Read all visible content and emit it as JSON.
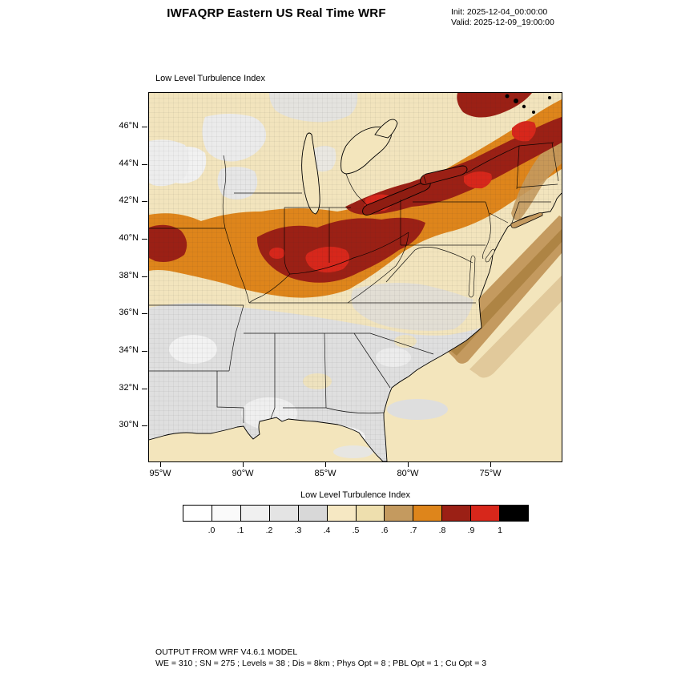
{
  "header": {
    "title": "IWFAQRP Eastern US Real Time WRF",
    "init": "Init: 2025-12-04_00:00:00",
    "valid": "Valid: 2025-12-09_19:00:00"
  },
  "map": {
    "field_title": "Low Level Turbulence Index",
    "lat_ticks": [
      "46°N",
      "44°N",
      "42°N",
      "40°N",
      "38°N",
      "36°N",
      "34°N",
      "32°N",
      "30°N"
    ],
    "lon_ticks": [
      "95°W",
      "90°W",
      "85°W",
      "80°W",
      "75°W"
    ]
  },
  "colorbar": {
    "title": "Low Level Turbulence Index",
    "ticks": [
      ".0",
      ".1",
      ".2",
      ".3",
      ".4",
      ".5",
      ".6",
      ".7",
      ".8",
      ".9",
      "1"
    ],
    "colors": [
      "#ffffff",
      "#fafafa",
      "#f0f0f0",
      "#e4e4e4",
      "#d8d8d8",
      "#f6e8c3",
      "#eedfae",
      "#c49a5f",
      "#de851b",
      "#9b2015",
      "#d7271b",
      "#000000"
    ]
  },
  "footer": {
    "line1": "OUTPUT FROM WRF V4.6.1 MODEL",
    "line2": "WE = 310 ; SN = 275 ; Levels = 38 ; Dis = 8km ; Phys Opt = 8 ; PBL Opt = 1 ; Cu Opt = 3"
  }
}
